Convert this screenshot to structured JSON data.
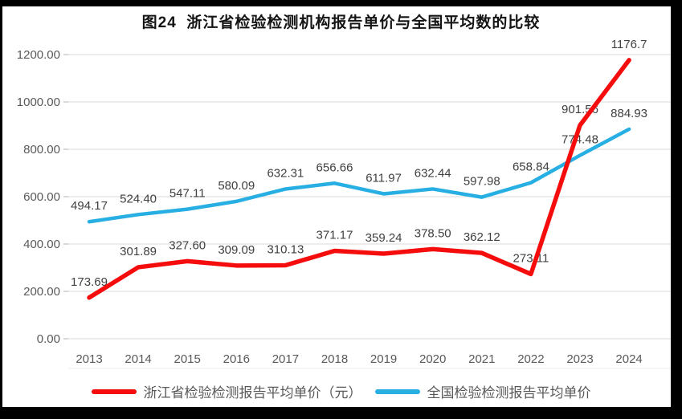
{
  "title": "图24  浙江省检验检测机构报告单价与全国平均数的比较",
  "chart_data": {
    "type": "line",
    "categories": [
      "2013",
      "2014",
      "2015",
      "2016",
      "2017",
      "2018",
      "2019",
      "2020",
      "2021",
      "2022",
      "2023",
      "2024"
    ],
    "series": [
      {
        "key": "zhejiang",
        "name": "浙江省检验检测报告平均单价（元）",
        "color": "#F50D0D",
        "values": [
          173.69,
          301.89,
          327.6,
          309.09,
          310.13,
          371.17,
          359.24,
          378.5,
          362.12,
          273.11,
          901.56,
          1176.7
        ],
        "labels": [
          "173.69",
          "301.89",
          "327.60",
          "309.09",
          "310.13",
          "371.17",
          "359.24",
          "378.50",
          "362.12",
          "273.11",
          "901.56",
          "1176.7"
        ]
      },
      {
        "key": "national",
        "name": "全国检验检测报告平均单价",
        "color": "#27AEE3",
        "values": [
          494.17,
          524.4,
          547.11,
          580.09,
          632.31,
          656.66,
          611.97,
          632.44,
          597.98,
          658.84,
          774.48,
          884.93
        ],
        "labels": [
          "494.17",
          "524.40",
          "547.11",
          "580.09",
          "632.31",
          "656.66",
          "611.97",
          "632.44",
          "597.98",
          "658.84",
          "774.48",
          "884.93"
        ]
      }
    ],
    "xlabel": "",
    "ylabel": "",
    "ylim": [
      0,
      1200
    ],
    "ytick_step": 200,
    "ytick_labels": [
      "0.00",
      "200.00",
      "400.00",
      "600.00",
      "800.00",
      "1000.00",
      "1200.00"
    ],
    "grid": true,
    "grid_color": "#D9D9D9",
    "tick_color": "#BFBFBF",
    "data_labels": true,
    "legend_position": "bottom"
  }
}
